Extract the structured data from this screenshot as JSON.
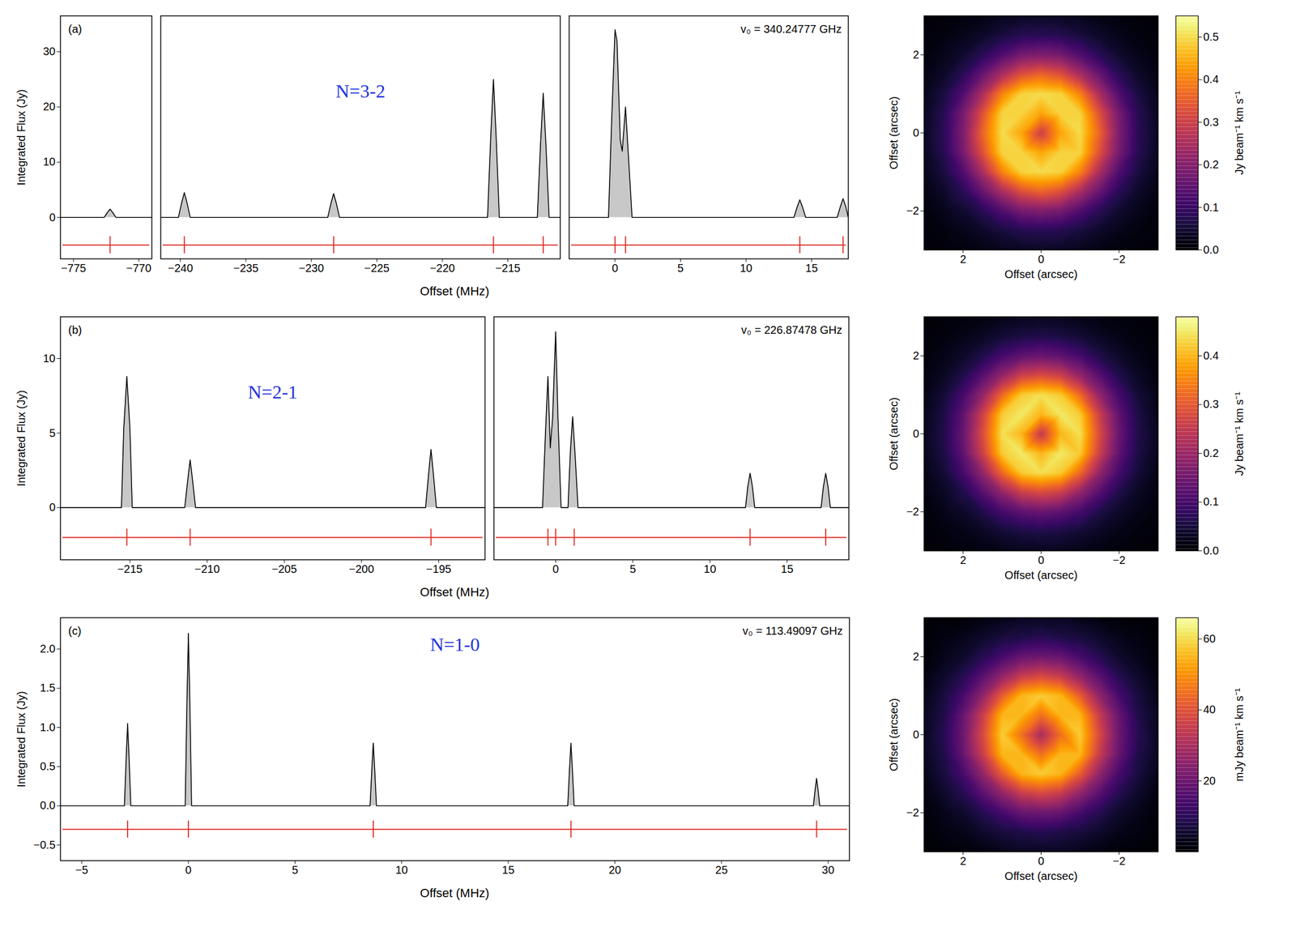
{
  "chart_data": [
    {
      "type": "line",
      "panel_label": "(a)",
      "annotations": [
        "N=3-2",
        "v₀ = 340.24777 GHz"
      ],
      "xlabel": "Offset (MHz)",
      "ylabel": "Integrated Flux (Jy)",
      "color": "#000000",
      "ylim": [
        -7.5,
        36.5
      ],
      "yticks": [
        0,
        10,
        20,
        30
      ],
      "segments": [
        {
          "xlim": [
            -776,
            -769
          ],
          "xticks": [
            -775,
            -770
          ],
          "x": [
            -776,
            -772.65,
            -772.4,
            -772.2,
            -772.0,
            -771.75,
            -769
          ],
          "values": [
            0,
            0,
            0.9,
            1.5,
            0.9,
            0,
            0
          ],
          "components": {
            "x": [
              -772.2
            ],
            "y": -5,
            "color": "#e0302a"
          }
        },
        {
          "xlim": [
            -241.5,
            -211
          ],
          "xticks": [
            -240,
            -235,
            -230,
            -225,
            -220,
            -215
          ],
          "x": [
            -241.5,
            -240.15,
            -239.9,
            -239.7,
            -239.5,
            -239.25,
            -228.75,
            -228.5,
            -228.3,
            -228.1,
            -227.85,
            -216.55,
            -216.3,
            -216.1,
            -215.9,
            -215.65,
            -212.75,
            -212.5,
            -212.3,
            -212.1,
            -211.85,
            -211
          ],
          "values": [
            0,
            0,
            2.7,
            4.5,
            2.7,
            0,
            0,
            2.6,
            4.3,
            2.6,
            0,
            0,
            15,
            25,
            15,
            0,
            0,
            13.5,
            22.5,
            13.5,
            0,
            0
          ],
          "components": {
            "x": [
              -239.7,
              -228.3,
              -216.1,
              -212.3
            ],
            "y": -5,
            "color": "#e0302a"
          }
        },
        {
          "xlim": [
            -3.5,
            17.8
          ],
          "xticks": [
            0,
            5,
            10,
            15
          ],
          "x": [
            -3.5,
            -0.5,
            -0.25,
            0,
            0.15,
            0.4,
            0.55,
            0.8,
            1.0,
            1.3,
            13.65,
            13.9,
            14.1,
            14.3,
            14.55,
            16.95,
            17.2,
            17.4,
            17.6,
            17.8
          ],
          "values": [
            0,
            0,
            18,
            34,
            32,
            14,
            12,
            20,
            12,
            0,
            0,
            1.9,
            3.2,
            1.9,
            0,
            0,
            2,
            3.4,
            2,
            0
          ],
          "components": {
            "x": [
              0,
              0.8,
              14.1,
              17.4
            ],
            "y": -5,
            "color": "#e0302a"
          }
        }
      ]
    },
    {
      "type": "heatmap",
      "xlabel": "Offset (arcsec)",
      "ylabel": "Offset (arcsec)",
      "color": "inferno",
      "xlim": [
        3,
        -3
      ],
      "xticks": [
        2,
        0,
        -2
      ],
      "ylim": [
        -3,
        3
      ],
      "yticks": [
        -2,
        0,
        2
      ],
      "x": [
        -3,
        -2.5,
        -2,
        -1.5,
        -1,
        -0.5,
        0,
        0.5,
        1,
        1.5,
        2,
        2.5,
        3
      ],
      "y": [
        3,
        2.5,
        2,
        1.5,
        1,
        0.5,
        0,
        -0.5,
        -1,
        -1.5,
        -2,
        -2.5,
        -3
      ],
      "values": [
        [
          0.008,
          0.01,
          0.013,
          0.02,
          0.028,
          0.033,
          0.035,
          0.033,
          0.028,
          0.02,
          0.013,
          0.01,
          0.008
        ],
        [
          0.01,
          0.015,
          0.026,
          0.04,
          0.06,
          0.075,
          0.08,
          0.075,
          0.06,
          0.04,
          0.026,
          0.015,
          0.01
        ],
        [
          0.013,
          0.026,
          0.045,
          0.08,
          0.13,
          0.18,
          0.19,
          0.18,
          0.13,
          0.08,
          0.045,
          0.026,
          0.013
        ],
        [
          0.02,
          0.04,
          0.08,
          0.16,
          0.25,
          0.33,
          0.36,
          0.33,
          0.25,
          0.16,
          0.08,
          0.04,
          0.02
        ],
        [
          0.028,
          0.06,
          0.13,
          0.25,
          0.4,
          0.49,
          0.5,
          0.49,
          0.4,
          0.25,
          0.13,
          0.06,
          0.028
        ],
        [
          0.033,
          0.075,
          0.18,
          0.33,
          0.49,
          0.49,
          0.44,
          0.49,
          0.49,
          0.33,
          0.18,
          0.075,
          0.033
        ],
        [
          0.035,
          0.08,
          0.19,
          0.36,
          0.5,
          0.44,
          0.3,
          0.44,
          0.5,
          0.36,
          0.19,
          0.08,
          0.035
        ],
        [
          0.033,
          0.075,
          0.18,
          0.33,
          0.49,
          0.49,
          0.44,
          0.49,
          0.49,
          0.33,
          0.18,
          0.075,
          0.033
        ],
        [
          0.028,
          0.06,
          0.13,
          0.25,
          0.4,
          0.49,
          0.5,
          0.49,
          0.4,
          0.25,
          0.13,
          0.06,
          0.028
        ],
        [
          0.02,
          0.04,
          0.08,
          0.16,
          0.25,
          0.33,
          0.36,
          0.33,
          0.25,
          0.16,
          0.08,
          0.04,
          0.02
        ],
        [
          0.013,
          0.026,
          0.045,
          0.08,
          0.13,
          0.18,
          0.19,
          0.18,
          0.13,
          0.08,
          0.045,
          0.026,
          0.013
        ],
        [
          0.01,
          0.015,
          0.026,
          0.04,
          0.06,
          0.075,
          0.08,
          0.075,
          0.06,
          0.04,
          0.026,
          0.015,
          0.01
        ],
        [
          0.008,
          0.01,
          0.013,
          0.02,
          0.028,
          0.033,
          0.035,
          0.033,
          0.028,
          0.02,
          0.013,
          0.01,
          0.008
        ]
      ],
      "colorbar": {
        "label": "Jy beam⁻¹ km s⁻¹",
        "range": [
          0,
          0.55
        ],
        "ticks": [
          {
            "value": 0,
            "label": "0.0"
          },
          0.1,
          0.2,
          0.3,
          0.4,
          0.5
        ]
      }
    },
    {
      "type": "line",
      "panel_label": "(b)",
      "annotations": [
        "N=2-1",
        "v₀ = 226.87478 GHz"
      ],
      "xlabel": "Offset (MHz)",
      "ylabel": "Integrated Flux (Jy)",
      "color": "#000000",
      "ylim": [
        -3.5,
        12.8
      ],
      "yticks": [
        0,
        5,
        10
      ],
      "segments": [
        {
          "xlim": [
            -219.5,
            -192
          ],
          "xticks": [
            -215,
            -210,
            -205,
            -200,
            -195
          ],
          "x": [
            -219.5,
            -215.55,
            -215.4,
            -215.2,
            -215.0,
            -214.85,
            -211.45,
            -211.25,
            -211.1,
            -210.95,
            -210.75,
            -195.85,
            -195.65,
            -195.5,
            -195.35,
            -195.15,
            -192
          ],
          "values": [
            0,
            0,
            5.3,
            8.8,
            5.3,
            0,
            0,
            1.9,
            3.2,
            1.9,
            0,
            0,
            2.3,
            3.9,
            2.3,
            0,
            0
          ],
          "components": {
            "x": [
              -215.2,
              -211.1,
              -195.5
            ],
            "y": -2,
            "color": "#e0302a"
          }
        },
        {
          "xlim": [
            -4,
            19
          ],
          "xticks": [
            0,
            5,
            10,
            15
          ],
          "x": [
            -4,
            -0.85,
            -0.65,
            -0.5,
            -0.35,
            -0.2,
            0,
            0.15,
            0.35,
            0.8,
            0.95,
            1.1,
            1.25,
            1.45,
            12.3,
            12.45,
            12.6,
            12.75,
            12.9,
            17.2,
            17.35,
            17.5,
            17.65,
            17.8,
            19
          ],
          "values": [
            0,
            0,
            5.3,
            8.8,
            4,
            6,
            11.8,
            6,
            0,
            0,
            3.7,
            6.1,
            3.7,
            0,
            0,
            1.4,
            2.3,
            1.4,
            0,
            0,
            1.4,
            2.3,
            1.4,
            0,
            0
          ],
          "components": {
            "x": [
              -0.5,
              0,
              1.2,
              12.6,
              17.5
            ],
            "y": -2,
            "color": "#e0302a"
          }
        }
      ]
    },
    {
      "type": "heatmap",
      "xlabel": "Offset (arcsec)",
      "ylabel": "Offset (arcsec)",
      "color": "inferno",
      "xlim": [
        3,
        -3
      ],
      "xticks": [
        2,
        0,
        -2
      ],
      "ylim": [
        -3,
        3
      ],
      "yticks": [
        -2,
        0,
        2
      ],
      "x": [
        -3,
        -2.5,
        -2,
        -1.5,
        -1,
        -0.5,
        0,
        0.5,
        1,
        1.5,
        2,
        2.5,
        3
      ],
      "y": [
        3,
        2.5,
        2,
        1.5,
        1,
        0.5,
        0,
        -0.5,
        -1,
        -1.5,
        -2,
        -2.5,
        -3
      ],
      "values": [
        [
          0.006,
          0.008,
          0.01,
          0.015,
          0.02,
          0.025,
          0.026,
          0.025,
          0.02,
          0.015,
          0.01,
          0.008,
          0.006
        ],
        [
          0.008,
          0.012,
          0.02,
          0.03,
          0.045,
          0.055,
          0.06,
          0.055,
          0.045,
          0.03,
          0.02,
          0.012,
          0.008
        ],
        [
          0.01,
          0.02,
          0.035,
          0.06,
          0.1,
          0.13,
          0.14,
          0.13,
          0.1,
          0.06,
          0.035,
          0.02,
          0.01
        ],
        [
          0.015,
          0.03,
          0.06,
          0.12,
          0.19,
          0.26,
          0.28,
          0.26,
          0.19,
          0.12,
          0.06,
          0.03,
          0.015
        ],
        [
          0.02,
          0.045,
          0.1,
          0.19,
          0.32,
          0.42,
          0.44,
          0.42,
          0.32,
          0.19,
          0.1,
          0.045,
          0.02
        ],
        [
          0.025,
          0.055,
          0.13,
          0.26,
          0.42,
          0.45,
          0.4,
          0.45,
          0.42,
          0.26,
          0.13,
          0.055,
          0.025
        ],
        [
          0.026,
          0.06,
          0.14,
          0.28,
          0.44,
          0.4,
          0.25,
          0.4,
          0.44,
          0.28,
          0.14,
          0.06,
          0.026
        ],
        [
          0.025,
          0.055,
          0.13,
          0.26,
          0.42,
          0.45,
          0.4,
          0.45,
          0.42,
          0.26,
          0.13,
          0.055,
          0.025
        ],
        [
          0.02,
          0.045,
          0.1,
          0.19,
          0.32,
          0.42,
          0.44,
          0.42,
          0.32,
          0.19,
          0.1,
          0.045,
          0.02
        ],
        [
          0.015,
          0.03,
          0.06,
          0.12,
          0.19,
          0.26,
          0.28,
          0.26,
          0.19,
          0.12,
          0.06,
          0.03,
          0.015
        ],
        [
          0.01,
          0.02,
          0.035,
          0.06,
          0.1,
          0.13,
          0.14,
          0.13,
          0.1,
          0.06,
          0.035,
          0.02,
          0.01
        ],
        [
          0.008,
          0.012,
          0.02,
          0.03,
          0.045,
          0.055,
          0.06,
          0.055,
          0.045,
          0.03,
          0.02,
          0.012,
          0.008
        ],
        [
          0.006,
          0.008,
          0.01,
          0.015,
          0.02,
          0.025,
          0.026,
          0.025,
          0.02,
          0.015,
          0.01,
          0.008,
          0.006
        ]
      ],
      "colorbar": {
        "label": "Jy beam⁻¹ km s⁻¹",
        "range": [
          0,
          0.48
        ],
        "ticks": [
          {
            "value": 0,
            "label": "0.0"
          },
          0.1,
          0.2,
          0.3,
          0.4
        ]
      }
    },
    {
      "type": "line",
      "panel_label": "(c)",
      "annotations": [
        "N=1-0",
        "v₀ = 113.49097 GHz"
      ],
      "xlabel": "Offset (MHz)",
      "ylabel": "Integrated Flux (Jy)",
      "color": "#000000",
      "ylim": [
        -0.7,
        2.4
      ],
      "yticks": [
        -0.5,
        {
          "value": 0,
          "label": "0.0"
        },
        0.5,
        {
          "value": 1,
          "label": "1.0"
        },
        1.5,
        {
          "value": 2,
          "label": "2.0"
        }
      ],
      "segments": [
        {
          "xlim": [
            -6,
            31
          ],
          "xticks": [
            -5,
            0,
            5,
            10,
            15,
            20,
            25,
            30
          ],
          "x": [
            -6,
            -3.0,
            -2.92,
            -2.85,
            -2.78,
            -2.7,
            -0.15,
            -0.07,
            0,
            0.07,
            0.15,
            8.52,
            8.6,
            8.67,
            8.74,
            8.82,
            17.79,
            17.87,
            17.94,
            18.01,
            18.09,
            29.31,
            29.39,
            29.46,
            29.53,
            29.61,
            31
          ],
          "values": [
            0,
            0,
            0.6,
            1.05,
            0.6,
            0,
            0,
            1.3,
            2.2,
            1.3,
            0,
            0,
            0.45,
            0.8,
            0.45,
            0,
            0,
            0.45,
            0.8,
            0.45,
            0,
            0,
            0.2,
            0.35,
            0.2,
            0,
            0
          ],
          "components": {
            "x": [
              -2.85,
              0,
              8.67,
              17.94,
              29.46
            ],
            "y": -0.3,
            "color": "#e0302a"
          }
        }
      ]
    },
    {
      "type": "heatmap",
      "xlabel": "Offset (arcsec)",
      "ylabel": "Offset (arcsec)",
      "color": "inferno",
      "xlim": [
        3,
        -3
      ],
      "xticks": [
        2,
        0,
        -2
      ],
      "ylim": [
        -3,
        3
      ],
      "yticks": [
        -2,
        0,
        2
      ],
      "x": [
        -3,
        -2.5,
        -2,
        -1.5,
        -1,
        -0.5,
        0,
        0.5,
        1,
        1.5,
        2,
        2.5,
        3
      ],
      "y": [
        3,
        2.5,
        2,
        1.5,
        1,
        0.5,
        0,
        -0.5,
        -1,
        -1.5,
        -2,
        -2.5,
        -3
      ],
      "values": [
        [
          1,
          1,
          1,
          2,
          3,
          4,
          4,
          4,
          3,
          2,
          1,
          1,
          1
        ],
        [
          1,
          2,
          3,
          5,
          7,
          8,
          9,
          8,
          7,
          5,
          3,
          2,
          1
        ],
        [
          1,
          3,
          5,
          9,
          14,
          19,
          20,
          19,
          14,
          9,
          5,
          3,
          1
        ],
        [
          2,
          5,
          9,
          17,
          26,
          35,
          38,
          35,
          26,
          17,
          9,
          5,
          2
        ],
        [
          3,
          7,
          14,
          26,
          42,
          55,
          58,
          55,
          42,
          26,
          14,
          7,
          3
        ],
        [
          4,
          8,
          19,
          35,
          55,
          55,
          45,
          55,
          55,
          35,
          19,
          8,
          4
        ],
        [
          4,
          9,
          20,
          38,
          58,
          45,
          30,
          45,
          58,
          38,
          20,
          9,
          4
        ],
        [
          4,
          8,
          19,
          35,
          55,
          55,
          45,
          55,
          55,
          35,
          19,
          8,
          4
        ],
        [
          3,
          7,
          14,
          26,
          42,
          55,
          58,
          55,
          42,
          26,
          14,
          7,
          3
        ],
        [
          2,
          5,
          9,
          17,
          26,
          35,
          38,
          35,
          26,
          17,
          9,
          5,
          2
        ],
        [
          1,
          3,
          5,
          9,
          14,
          19,
          20,
          19,
          14,
          9,
          5,
          3,
          1
        ],
        [
          1,
          2,
          3,
          5,
          7,
          8,
          9,
          8,
          7,
          5,
          3,
          2,
          1
        ],
        [
          1,
          1,
          1,
          2,
          3,
          4,
          4,
          4,
          3,
          2,
          1,
          1,
          1
        ]
      ],
      "colorbar": {
        "label": "mJy beam⁻¹ km s⁻¹",
        "range": [
          0,
          66
        ],
        "ticks": [
          20,
          40,
          60
        ]
      }
    }
  ]
}
